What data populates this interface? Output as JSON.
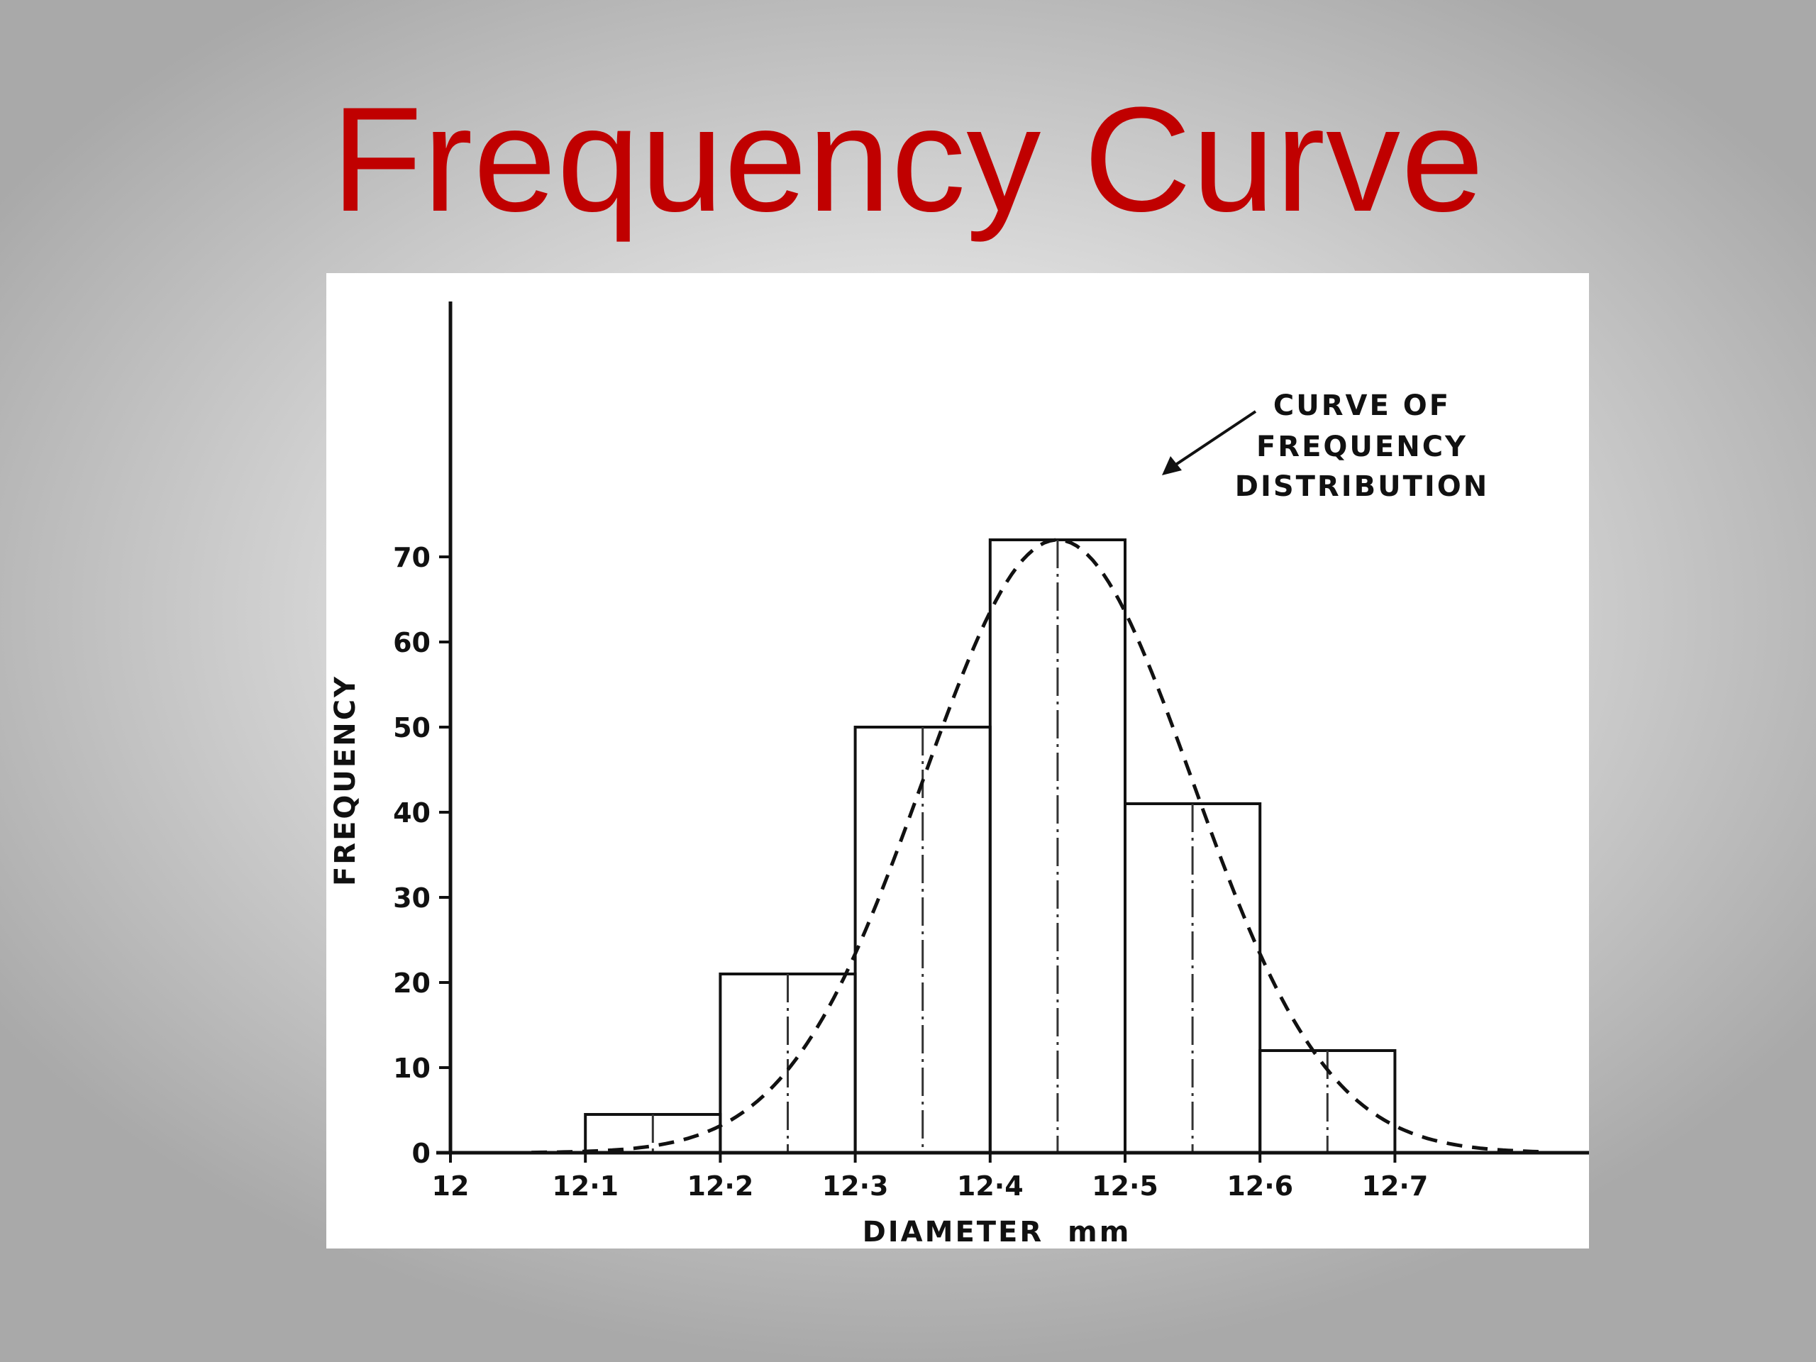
{
  "slide": {
    "title": "Frequency Curve"
  },
  "colors": {
    "title": "#c00000",
    "ink": "#111111",
    "panel": "#ffffff"
  },
  "chart_data": {
    "type": "bar",
    "xlabel": "DIAMETER  mm",
    "ylabel": "FREQUENCY",
    "x_ticks": [
      "12",
      "12·1",
      "12·2",
      "12·3",
      "12·4",
      "12·5",
      "12·6",
      "12·7"
    ],
    "y_ticks": [
      "0",
      "10",
      "20",
      "30",
      "40",
      "50",
      "60",
      "70"
    ],
    "xlim": [
      12.0,
      12.82
    ],
    "ylim": [
      0,
      70
    ],
    "bins": [
      {
        "start": 12.1,
        "end": 12.2,
        "value": 4.5
      },
      {
        "start": 12.2,
        "end": 12.3,
        "value": 21
      },
      {
        "start": 12.3,
        "end": 12.4,
        "value": 50
      },
      {
        "start": 12.4,
        "end": 12.5,
        "value": 72
      },
      {
        "start": 12.5,
        "end": 12.6,
        "value": 41
      },
      {
        "start": 12.6,
        "end": 12.7,
        "value": 12
      }
    ],
    "curve": {
      "style": "dashed",
      "peak_x": 12.45,
      "peak_y": 72,
      "sigma": 0.1
    },
    "annotation": {
      "lines": [
        "CURVE OF",
        "FREQUENCY",
        "DISTRIBUTION"
      ]
    },
    "grid": false,
    "legend": "none"
  }
}
